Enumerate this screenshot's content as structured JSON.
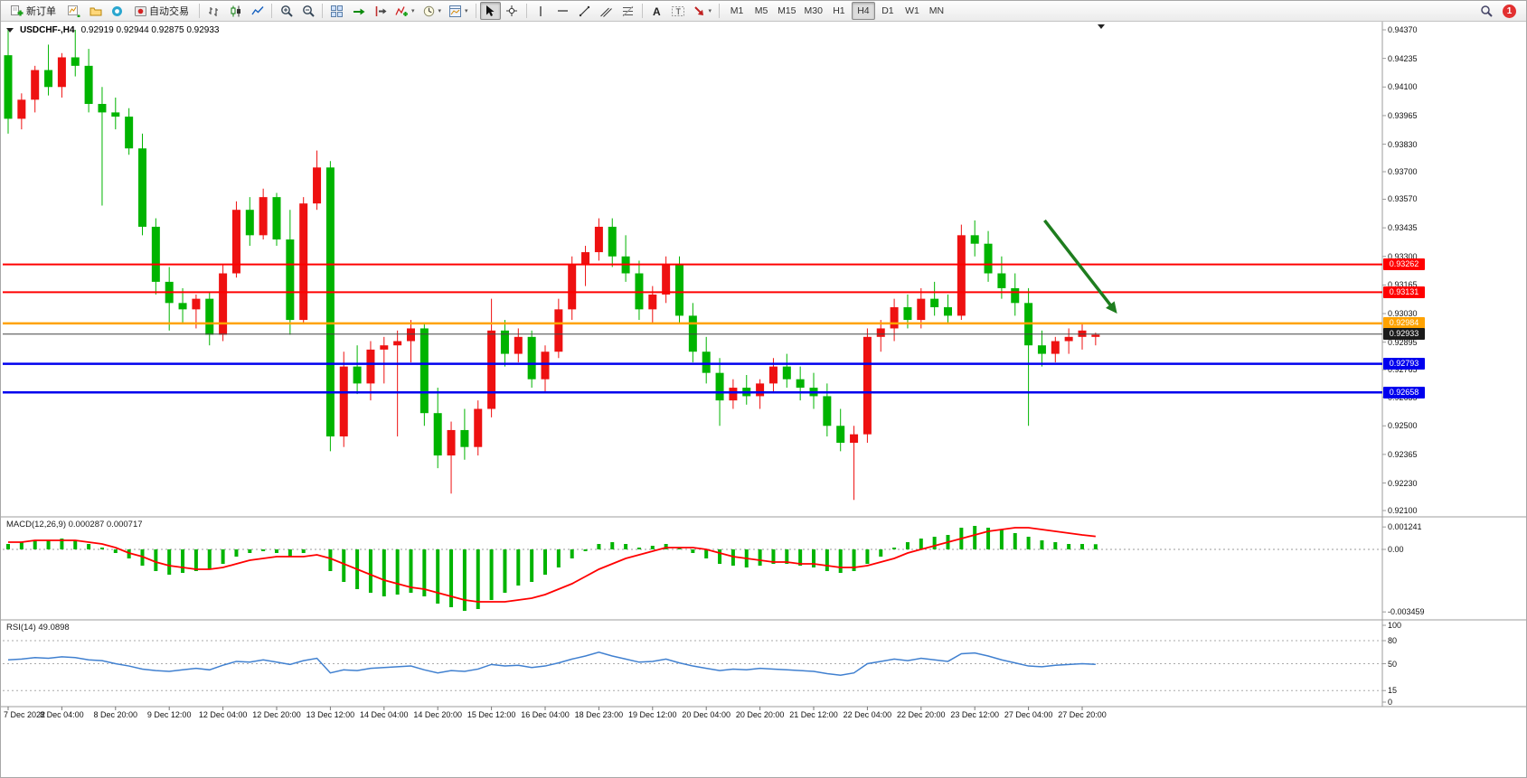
{
  "toolbar": {
    "notification_count": "1",
    "timeframes": [
      "M1",
      "M5",
      "M15",
      "M30",
      "H1",
      "H4",
      "D1",
      "W1",
      "MN"
    ],
    "active_timeframe": "H4",
    "buttons": [
      {
        "name": "new-order",
        "label": "新订单",
        "icon": "new-order-icon"
      },
      {
        "name": "new-chart",
        "icon": "new-chart-icon"
      },
      {
        "name": "profiles",
        "icon": "profiles-icon"
      },
      {
        "name": "community",
        "icon": "community-icon"
      },
      {
        "name": "auto-trading",
        "label": "自动交易",
        "icon": "auto-trading-icon"
      },
      {
        "sep": true
      },
      {
        "name": "bar-chart",
        "icon": "bar-chart-icon"
      },
      {
        "name": "candlestick-chart",
        "icon": "candlestick-icon"
      },
      {
        "name": "line-chart",
        "icon": "line-chart-icon"
      },
      {
        "sep": true
      },
      {
        "name": "zoom-in",
        "icon": "zoom-in-icon"
      },
      {
        "name": "zoom-out",
        "icon": "zoom-out-icon"
      },
      {
        "sep": true
      },
      {
        "name": "tile-windows",
        "icon": "tile-windows-icon"
      },
      {
        "name": "auto-scroll",
        "icon": "auto-scroll-icon"
      },
      {
        "name": "chart-shift",
        "icon": "chart-shift-icon"
      },
      {
        "name": "indicators",
        "icon": "indicators-icon",
        "caret": true
      },
      {
        "name": "periods",
        "icon": "clock-icon",
        "caret": true
      },
      {
        "name": "templates",
        "icon": "template-icon",
        "caret": true
      },
      {
        "sep": true
      },
      {
        "name": "cursor",
        "icon": "cursor-icon",
        "active": true
      },
      {
        "name": "crosshair",
        "icon": "crosshair-icon"
      },
      {
        "sep": true
      },
      {
        "name": "vertical-line",
        "icon": "vline-icon"
      },
      {
        "name": "horizontal-line",
        "icon": "hline-icon"
      },
      {
        "name": "trendline",
        "icon": "trendline-icon"
      },
      {
        "name": "equidistant-channel",
        "icon": "channel-icon"
      },
      {
        "name": "fibonacci",
        "icon": "fibonacci-icon"
      },
      {
        "sep": true
      },
      {
        "name": "text",
        "icon": "text-icon"
      },
      {
        "name": "text-label",
        "icon": "label-icon"
      },
      {
        "name": "arrow-objects",
        "icon": "arrow-icon",
        "caret": true
      },
      {
        "sep": true
      }
    ]
  },
  "chart": {
    "title": "USDCHF-,H4",
    "ohlc": "0.92919 0.92944 0.92875 0.92933"
  },
  "chart_data": {
    "type": "candlestick",
    "symbol": "USDCHF-",
    "timeframe": "H4",
    "ylim": [
      0.921,
      0.9437
    ],
    "up_color": "#ee1111",
    "down_color": "#00b400",
    "price_axis_ticks": [
      "0.94370",
      "0.94235",
      "0.94100",
      "0.93965",
      "0.93830",
      "0.93700",
      "0.93570",
      "0.93435",
      "0.93300",
      "0.93165",
      "0.93030",
      "0.92895",
      "0.92765",
      "0.92635",
      "0.92500",
      "0.92365",
      "0.92230",
      "0.92100"
    ],
    "time_axis_ticks": [
      "7 Dec 2022",
      "8 Dec 04:00",
      "8 Dec 20:00",
      "9 Dec 12:00",
      "12 Dec 04:00",
      "12 Dec 20:00",
      "13 Dec 12:00",
      "14 Dec 04:00",
      "14 Dec 20:00",
      "15 Dec 12:00",
      "16 Dec 04:00",
      "18 Dec 23:00",
      "19 Dec 12:00",
      "20 Dec 04:00",
      "20 Dec 20:00",
      "21 Dec 12:00",
      "22 Dec 04:00",
      "22 Dec 20:00",
      "23 Dec 12:00",
      "27 Dec 04:00",
      "27 Dec 20:00"
    ],
    "levels": [
      {
        "label": "0.93262",
        "price": 0.93262,
        "color": "#ff0000",
        "width": 2,
        "type": "resistance"
      },
      {
        "label": "0.93131",
        "price": 0.93131,
        "color": "#ff0000",
        "width": 2,
        "type": "resistance"
      },
      {
        "label": "0.92984",
        "price": 0.92984,
        "color": "#ffa200",
        "width": 2.5,
        "type": "pivot"
      },
      {
        "label": "0.92933",
        "price": 0.92933,
        "color": "#444444",
        "width": 1,
        "type": "current-price"
      },
      {
        "label": "0.92793",
        "price": 0.92793,
        "color": "#0000ee",
        "width": 2.5,
        "type": "support"
      },
      {
        "label": "0.92658",
        "price": 0.92658,
        "color": "#0000ee",
        "width": 2.5,
        "type": "support"
      }
    ],
    "current_price": 0.92933,
    "arrow": {
      "from_bar": 77.2,
      "from_price": 0.9347,
      "to_bar": 82.6,
      "to_price": 0.9303,
      "color": "#1e7d1e"
    },
    "candles": [
      [
        0.9425,
        0.9437,
        0.9388,
        0.9395
      ],
      [
        0.9395,
        0.9407,
        0.939,
        0.9404
      ],
      [
        0.9404,
        0.942,
        0.9398,
        0.9418
      ],
      [
        0.9418,
        0.943,
        0.9406,
        0.941
      ],
      [
        0.941,
        0.9426,
        0.9405,
        0.9424
      ],
      [
        0.9424,
        0.9437,
        0.9415,
        0.942
      ],
      [
        0.942,
        0.9428,
        0.9398,
        0.9402
      ],
      [
        0.9402,
        0.941,
        0.9354,
        0.9398
      ],
      [
        0.9398,
        0.9405,
        0.939,
        0.9396
      ],
      [
        0.9396,
        0.94,
        0.9378,
        0.9381
      ],
      [
        0.9381,
        0.9388,
        0.934,
        0.9344
      ],
      [
        0.9344,
        0.9348,
        0.9312,
        0.9318
      ],
      [
        0.9318,
        0.9325,
        0.9295,
        0.9308
      ],
      [
        0.9308,
        0.9315,
        0.9298,
        0.9305
      ],
      [
        0.9305,
        0.9312,
        0.9296,
        0.931
      ],
      [
        0.931,
        0.9313,
        0.9288,
        0.9293
      ],
      [
        0.9293,
        0.9326,
        0.929,
        0.9322
      ],
      [
        0.9322,
        0.9356,
        0.932,
        0.9352
      ],
      [
        0.9352,
        0.9358,
        0.9335,
        0.934
      ],
      [
        0.934,
        0.9362,
        0.9338,
        0.9358
      ],
      [
        0.9358,
        0.936,
        0.9335,
        0.9338
      ],
      [
        0.9338,
        0.9352,
        0.9293,
        0.93
      ],
      [
        0.93,
        0.9358,
        0.9298,
        0.9355
      ],
      [
        0.9355,
        0.938,
        0.9352,
        0.9372
      ],
      [
        0.9372,
        0.9375,
        0.9238,
        0.9245
      ],
      [
        0.9245,
        0.9285,
        0.924,
        0.9278
      ],
      [
        0.9278,
        0.9288,
        0.9265,
        0.927
      ],
      [
        0.927,
        0.929,
        0.9262,
        0.9286
      ],
      [
        0.9286,
        0.9292,
        0.927,
        0.9288
      ],
      [
        0.9288,
        0.9295,
        0.9245,
        0.929
      ],
      [
        0.929,
        0.93,
        0.928,
        0.9296
      ],
      [
        0.9296,
        0.9298,
        0.925,
        0.9256
      ],
      [
        0.9256,
        0.9268,
        0.923,
        0.9236
      ],
      [
        0.9236,
        0.9252,
        0.9218,
        0.9248
      ],
      [
        0.9248,
        0.9258,
        0.9234,
        0.924
      ],
      [
        0.924,
        0.9262,
        0.9236,
        0.9258
      ],
      [
        0.9258,
        0.931,
        0.9254,
        0.9295
      ],
      [
        0.9295,
        0.93,
        0.9278,
        0.9284
      ],
      [
        0.9284,
        0.9296,
        0.928,
        0.9292
      ],
      [
        0.9292,
        0.9295,
        0.9268,
        0.9272
      ],
      [
        0.9272,
        0.9288,
        0.9266,
        0.9285
      ],
      [
        0.9285,
        0.931,
        0.9282,
        0.9305
      ],
      [
        0.9305,
        0.933,
        0.93,
        0.9326
      ],
      [
        0.9326,
        0.9335,
        0.9316,
        0.9332
      ],
      [
        0.9332,
        0.9348,
        0.9328,
        0.9344
      ],
      [
        0.9344,
        0.9348,
        0.9325,
        0.933
      ],
      [
        0.933,
        0.934,
        0.9318,
        0.9322
      ],
      [
        0.9322,
        0.9328,
        0.93,
        0.9305
      ],
      [
        0.9305,
        0.9316,
        0.9298,
        0.9312
      ],
      [
        0.9312,
        0.933,
        0.9308,
        0.9326
      ],
      [
        0.9326,
        0.933,
        0.9298,
        0.9302
      ],
      [
        0.9302,
        0.9308,
        0.928,
        0.9285
      ],
      [
        0.9285,
        0.9292,
        0.927,
        0.9275
      ],
      [
        0.9275,
        0.9282,
        0.925,
        0.9262
      ],
      [
        0.9262,
        0.9272,
        0.9258,
        0.9268
      ],
      [
        0.9268,
        0.9274,
        0.926,
        0.9264
      ],
      [
        0.9264,
        0.9272,
        0.9258,
        0.927
      ],
      [
        0.927,
        0.9282,
        0.9266,
        0.9278
      ],
      [
        0.9278,
        0.9284,
        0.9268,
        0.9272
      ],
      [
        0.9272,
        0.9278,
        0.9262,
        0.9268
      ],
      [
        0.9268,
        0.9275,
        0.9258,
        0.9264
      ],
      [
        0.9264,
        0.927,
        0.9245,
        0.925
      ],
      [
        0.925,
        0.9258,
        0.9238,
        0.9242
      ],
      [
        0.9242,
        0.925,
        0.9215,
        0.9246
      ],
      [
        0.9246,
        0.9296,
        0.9242,
        0.9292
      ],
      [
        0.9292,
        0.93,
        0.9285,
        0.9296
      ],
      [
        0.9296,
        0.931,
        0.929,
        0.9306
      ],
      [
        0.9306,
        0.9312,
        0.9296,
        0.93
      ],
      [
        0.93,
        0.9315,
        0.9296,
        0.931
      ],
      [
        0.931,
        0.9318,
        0.9302,
        0.9306
      ],
      [
        0.9306,
        0.9312,
        0.9298,
        0.9302
      ],
      [
        0.9302,
        0.9345,
        0.93,
        0.934
      ],
      [
        0.934,
        0.9347,
        0.933,
        0.9336
      ],
      [
        0.9336,
        0.9342,
        0.9318,
        0.9322
      ],
      [
        0.9322,
        0.933,
        0.931,
        0.9315
      ],
      [
        0.9315,
        0.9322,
        0.9302,
        0.9308
      ],
      [
        0.9308,
        0.9315,
        0.925,
        0.9288
      ],
      [
        0.9288,
        0.9295,
        0.9278,
        0.9284
      ],
      [
        0.9284,
        0.9292,
        0.928,
        0.929
      ],
      [
        0.929,
        0.9296,
        0.9284,
        0.9292
      ],
      [
        0.9292,
        0.9298,
        0.9286,
        0.9295
      ],
      [
        0.9292,
        0.9294,
        0.9288,
        0.9293
      ]
    ],
    "macd": {
      "label": "MACD(12,26,9) 0.000287 0.000717",
      "axis_ticks": [
        "0.001241",
        "0.00",
        "-0.003459"
      ],
      "histogram_color": "#00b400",
      "signal_color": "#ff0000",
      "histogram": [
        0.0003,
        0.0004,
        0.0005,
        0.0005,
        0.0006,
        0.0005,
        0.0003,
        0.0001,
        -0.0002,
        -0.0005,
        -0.0009,
        -0.0012,
        -0.0014,
        -0.0013,
        -0.0012,
        -0.0011,
        -0.0008,
        -0.0004,
        -0.0002,
        -0.0001,
        -0.0002,
        -0.0004,
        -0.0002,
        0.0,
        -0.0012,
        -0.0018,
        -0.0022,
        -0.0024,
        -0.0026,
        -0.0025,
        -0.0024,
        -0.0026,
        -0.003,
        -0.0032,
        -0.0034,
        -0.0033,
        -0.0028,
        -0.0024,
        -0.002,
        -0.0018,
        -0.0014,
        -0.001,
        -0.0005,
        -0.0001,
        0.0003,
        0.0004,
        0.0003,
        0.0001,
        0.0002,
        0.0003,
        0.0001,
        -0.0002,
        -0.0005,
        -0.0008,
        -0.0009,
        -0.001,
        -0.0009,
        -0.0008,
        -0.0008,
        -0.0009,
        -0.001,
        -0.0012,
        -0.0013,
        -0.0012,
        -0.0008,
        -0.0004,
        0.0001,
        0.0004,
        0.0006,
        0.0007,
        0.0008,
        0.0012,
        0.0013,
        0.0012,
        0.0011,
        0.0009,
        0.0007,
        0.0005,
        0.0004,
        0.0003,
        0.0003,
        0.000287
      ],
      "signal": [
        0.0004,
        0.0004,
        0.0005,
        0.0005,
        0.0005,
        0.0005,
        0.0004,
        0.0003,
        0.0001,
        -0.0002,
        -0.0004,
        -0.0007,
        -0.0009,
        -0.001,
        -0.0011,
        -0.0011,
        -0.001,
        -0.0008,
        -0.0006,
        -0.0005,
        -0.0004,
        -0.0004,
        -0.0004,
        -0.0003,
        -0.0005,
        -0.0008,
        -0.0011,
        -0.0014,
        -0.0017,
        -0.0019,
        -0.0021,
        -0.0022,
        -0.0024,
        -0.0026,
        -0.0028,
        -0.0029,
        -0.0029,
        -0.0029,
        -0.0028,
        -0.0027,
        -0.0025,
        -0.0022,
        -0.0019,
        -0.0015,
        -0.0011,
        -0.0008,
        -0.0005,
        -0.0003,
        -0.0001,
        0.0001,
        0.0001,
        0.0001,
        0.0,
        -0.0002,
        -0.0004,
        -0.0005,
        -0.0006,
        -0.0007,
        -0.0007,
        -0.0008,
        -0.0008,
        -0.0009,
        -0.001,
        -0.001,
        -0.0009,
        -0.0007,
        -0.0005,
        -0.0002,
        0.0,
        0.0002,
        0.0004,
        0.0006,
        0.0008,
        0.001,
        0.0011,
        0.0012,
        0.0012,
        0.0011,
        0.001,
        0.0009,
        0.0008,
        0.000717
      ]
    },
    "rsi": {
      "label": "RSI(14) 49.0898",
      "axis_ticks": [
        "100",
        "80",
        "50",
        "15",
        "0"
      ],
      "levels": [
        80,
        50,
        15
      ],
      "line_color": "#4080d0",
      "values": [
        55,
        56,
        58,
        57,
        59,
        58,
        55,
        54,
        50,
        47,
        43,
        41,
        40,
        42,
        44,
        42,
        48,
        53,
        52,
        55,
        52,
        49,
        54,
        57,
        38,
        42,
        41,
        44,
        45,
        46,
        47,
        42,
        38,
        41,
        40,
        43,
        49,
        47,
        48,
        45,
        47,
        51,
        56,
        60,
        65,
        60,
        56,
        52,
        53,
        56,
        51,
        47,
        44,
        41,
        43,
        42,
        44,
        43,
        42,
        41,
        40,
        37,
        35,
        38,
        50,
        53,
        56,
        54,
        57,
        55,
        53,
        63,
        64,
        60,
        55,
        51,
        47,
        46,
        48,
        49,
        50,
        49.0898
      ]
    }
  }
}
